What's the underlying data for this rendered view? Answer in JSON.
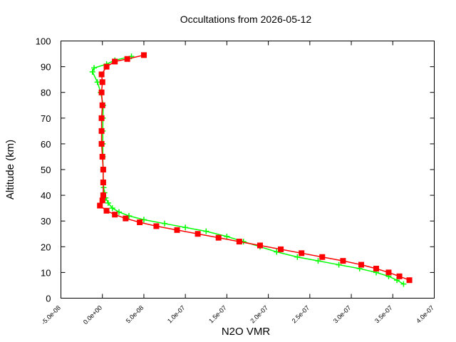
{
  "chart_data": {
    "type": "scatter",
    "title": "Occultations from 2026-05-12",
    "xlabel": "N2O VMR",
    "ylabel": "Altitude (km)",
    "xlim": [
      -5e-08,
      4e-07
    ],
    "ylim": [
      0,
      100
    ],
    "x_ticks": [
      -5e-08,
      0,
      5e-08,
      1e-07,
      1.5e-07,
      2e-07,
      2.5e-07,
      3e-07,
      3.5e-07,
      4e-07
    ],
    "x_tick_labels": [
      "-5.0e-08",
      "0.0e+00",
      "5.0e-08",
      "1.0e-07",
      "1.5e-07",
      "2.0e-07",
      "2.5e-07",
      "3.0e-07",
      "3.5e-07",
      "4.0e-07"
    ],
    "y_ticks": [
      0,
      10,
      20,
      30,
      40,
      50,
      60,
      70,
      80,
      90,
      100
    ],
    "y_tick_labels": [
      "0",
      "10",
      "20",
      "30",
      "40",
      "50",
      "60",
      "70",
      "80",
      "90",
      "100"
    ],
    "grid": false,
    "legend": "none",
    "series": [
      {
        "marker": "plus",
        "color": "#00ff00",
        "points": [
          [
            3.63e-07,
            5.5
          ],
          [
            3.55e-07,
            7
          ],
          [
            3.45e-07,
            8.5
          ],
          [
            3.3e-07,
            10
          ],
          [
            3.1e-07,
            11.5
          ],
          [
            2.85e-07,
            13
          ],
          [
            2.6e-07,
            14.5
          ],
          [
            2.35e-07,
            16
          ],
          [
            2.1e-07,
            18
          ],
          [
            1.9e-07,
            20
          ],
          [
            1.7e-07,
            22
          ],
          [
            1.5e-07,
            24
          ],
          [
            1.25e-07,
            26
          ],
          [
            1e-07,
            27.5
          ],
          [
            7.5e-08,
            29
          ],
          [
            5e-08,
            30.5
          ],
          [
            3.2e-08,
            32
          ],
          [
            2e-08,
            33.5
          ],
          [
            1.2e-08,
            35
          ],
          [
            7e-09,
            37
          ],
          [
            4e-09,
            39
          ],
          [
            2.5e-09,
            41
          ],
          [
            1.5e-09,
            43
          ],
          [
            1e-09,
            45
          ],
          [
            8e-10,
            50
          ],
          [
            6e-10,
            55
          ],
          [
            5e-10,
            60
          ],
          [
            5e-10,
            65
          ],
          [
            6e-10,
            70
          ],
          [
            1e-09,
            75
          ],
          [
            -2e-09,
            80
          ],
          [
            -6e-09,
            84
          ],
          [
            -1.2e-08,
            88
          ],
          [
            -1e-08,
            89.5
          ],
          [
            5e-09,
            91
          ],
          [
            1.5e-08,
            92.5
          ],
          [
            3.5e-08,
            94
          ]
        ]
      },
      {
        "marker": "square",
        "color": "#ff0000",
        "points": [
          [
            3.7e-07,
            7
          ],
          [
            3.58e-07,
            8.5
          ],
          [
            3.45e-07,
            10
          ],
          [
            3.3e-07,
            11.5
          ],
          [
            3.12e-07,
            13
          ],
          [
            2.9e-07,
            14.5
          ],
          [
            2.65e-07,
            16
          ],
          [
            2.4e-07,
            17.5
          ],
          [
            2.15e-07,
            19
          ],
          [
            1.9e-07,
            20.5
          ],
          [
            1.65e-07,
            22
          ],
          [
            1.4e-07,
            23.5
          ],
          [
            1.15e-07,
            25
          ],
          [
            9e-08,
            26.5
          ],
          [
            6.5e-08,
            28
          ],
          [
            4.5e-08,
            29.5
          ],
          [
            2.8e-08,
            31
          ],
          [
            1.5e-08,
            32.5
          ],
          [
            5e-09,
            34
          ],
          [
            -3e-09,
            36
          ],
          [
            0,
            38
          ],
          [
            1e-09,
            40
          ],
          [
            1e-09,
            45
          ],
          [
            1e-09,
            50
          ],
          [
            0,
            55
          ],
          [
            -1e-09,
            60
          ],
          [
            -1e-09,
            65
          ],
          [
            -1e-09,
            70
          ],
          [
            0,
            75
          ],
          [
            -1e-09,
            80
          ],
          [
            0,
            84
          ],
          [
            -1e-09,
            87
          ],
          [
            5e-09,
            90
          ],
          [
            1.5e-08,
            92
          ],
          [
            3e-08,
            93
          ],
          [
            5e-08,
            94.5
          ]
        ]
      }
    ]
  }
}
